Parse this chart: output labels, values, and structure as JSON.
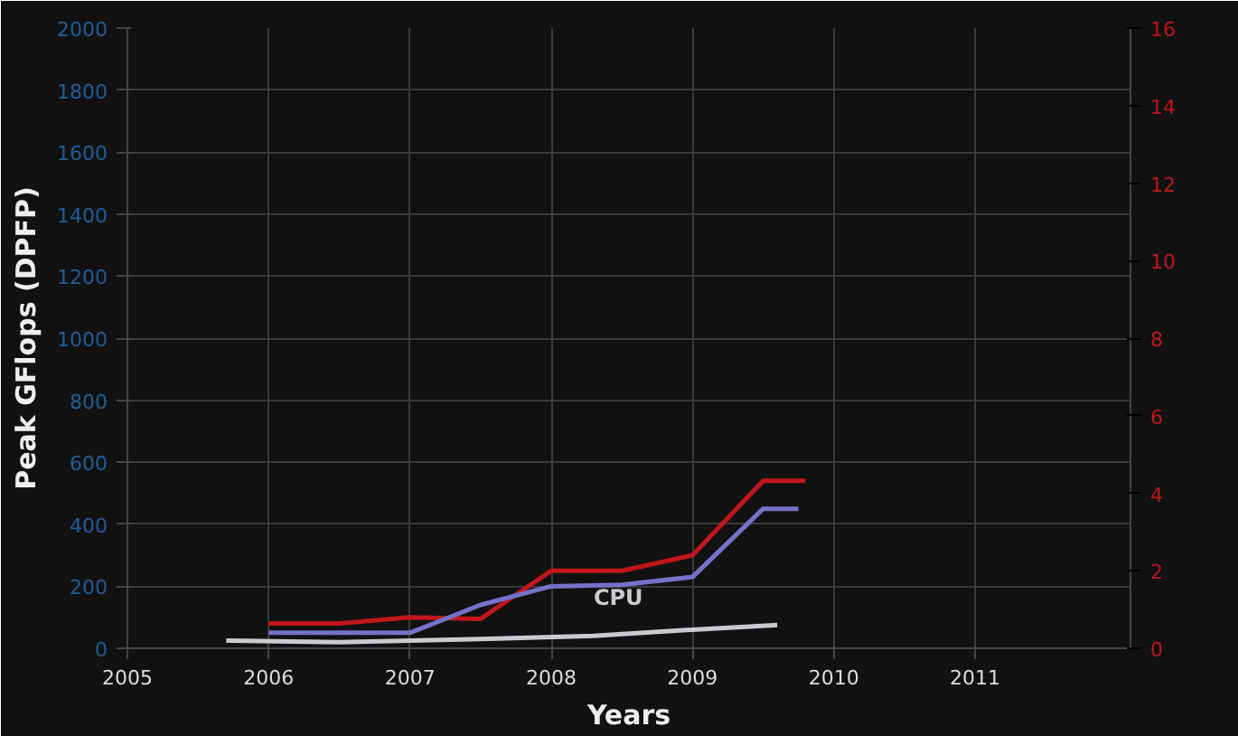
{
  "chart_data": {
    "type": "line",
    "xlabel": "Years",
    "ylabel": "Peak GFlops (DPFP)",
    "xlim": [
      2005,
      2012.1
    ],
    "xticks": [
      2005,
      2006,
      2007,
      2008,
      2009,
      2010,
      2011
    ],
    "ylim": [
      0,
      2000
    ],
    "yticks": [
      0,
      200,
      400,
      600,
      800,
      1000,
      1200,
      1400,
      1600,
      1800,
      2000
    ],
    "y2lim": [
      0,
      16
    ],
    "y2ticks": [
      0,
      2,
      4,
      6,
      8,
      10,
      12,
      14,
      16
    ],
    "grid": true,
    "marker": "none",
    "line_style": "solid",
    "series": [
      {
        "color": "#c0161c",
        "x": [
          2006,
          2006.5,
          2007,
          2007.5,
          2008,
          2008.5,
          2009,
          2009.5,
          2009.8
        ],
        "values": [
          80,
          80,
          100,
          95,
          250,
          250,
          300,
          540,
          540
        ]
      },
      {
        "color": "#7373c8",
        "x": [
          2006,
          2007,
          2007.5,
          2008,
          2008.5,
          2009,
          2009.5,
          2009.75
        ],
        "values": [
          50,
          50,
          140,
          200,
          205,
          230,
          450,
          450
        ]
      },
      {
        "name": "CPU",
        "color": "#c8ccd0",
        "x": [
          2005.7,
          2006.5,
          2007.5,
          2008.3,
          2009,
          2009.6
        ],
        "values": [
          25,
          20,
          30,
          40,
          60,
          75
        ]
      }
    ]
  }
}
